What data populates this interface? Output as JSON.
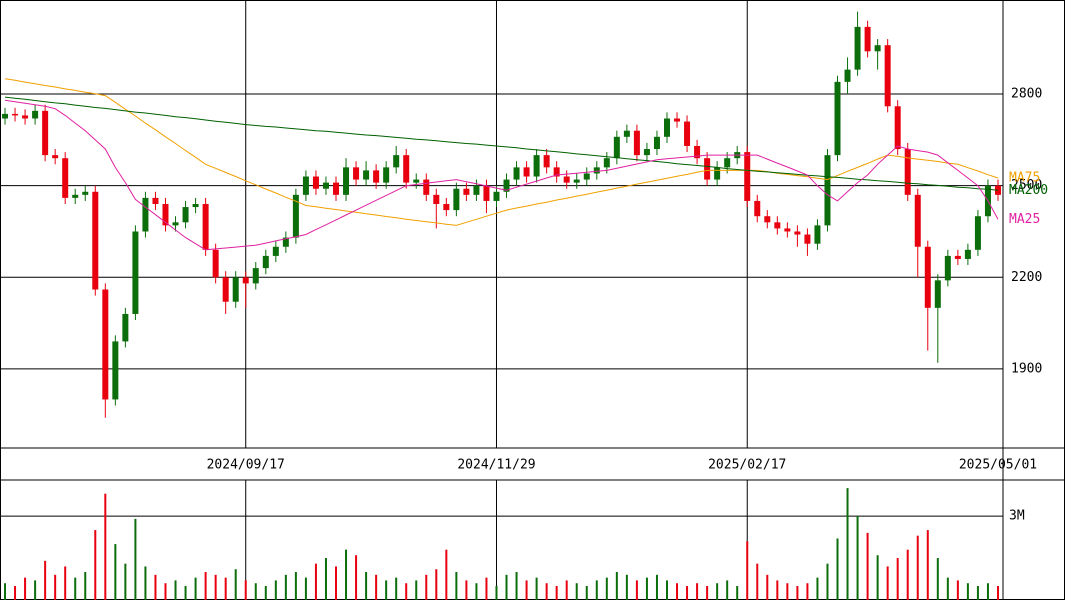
{
  "chart_data": [
    {
      "type": "candlestick",
      "categories": [
        null,
        null,
        null,
        null,
        null,
        null,
        null,
        null,
        null,
        null,
        null,
        null,
        null,
        null,
        null,
        null,
        null,
        null,
        null,
        null,
        null,
        null,
        null,
        null,
        "2024/09/17",
        null,
        null,
        null,
        null,
        null,
        null,
        null,
        null,
        null,
        null,
        null,
        null,
        null,
        null,
        null,
        null,
        null,
        null,
        null,
        null,
        null,
        null,
        null,
        null,
        "2024/11/29",
        null,
        null,
        null,
        null,
        null,
        null,
        null,
        null,
        null,
        null,
        null,
        null,
        null,
        null,
        null,
        null,
        null,
        null,
        null,
        null,
        null,
        null,
        null,
        null,
        "2025/02/17",
        null,
        null,
        null,
        null,
        null,
        null,
        null,
        null,
        null,
        null,
        null,
        null,
        null,
        null,
        null,
        null,
        null,
        null,
        null,
        null,
        null,
        null,
        null,
        null,
        "2025/05/01"
      ],
      "open": [
        2720,
        2735,
        2730,
        2720,
        2745,
        2600,
        2590,
        2460,
        2470,
        2480,
        2160,
        1800,
        1990,
        2080,
        2350,
        2460,
        2440,
        2370,
        2380,
        2430,
        2440,
        2290,
        2200,
        2120,
        2200,
        2180,
        2230,
        2270,
        2300,
        2330,
        2470,
        2530,
        2490,
        2510,
        2470,
        2560,
        2520,
        2550,
        2510,
        2560,
        2600,
        2510,
        2520,
        2470,
        2440,
        2420,
        2490,
        2470,
        2500,
        2450,
        2480,
        2520,
        2560,
        2530,
        2600,
        2560,
        2530,
        2510,
        2520,
        2540,
        2560,
        2590,
        2660,
        2680,
        2600,
        2620,
        2660,
        2720,
        2710,
        2630,
        2590,
        2520,
        2560,
        2590,
        2610,
        2450,
        2400,
        2380,
        2360,
        2350,
        2340,
        2310,
        2370,
        2600,
        2840,
        2880,
        3020,
        2940,
        2960,
        2760,
        2620,
        2470,
        2300,
        2100,
        2190,
        2270,
        2260,
        2290,
        2400,
        2500
      ],
      "high": [
        2755,
        2755,
        2750,
        2765,
        2765,
        2620,
        2610,
        2490,
        2500,
        2500,
        2180,
        2010,
        2100,
        2370,
        2480,
        2480,
        2460,
        2400,
        2450,
        2460,
        2460,
        2310,
        2220,
        2220,
        2220,
        2250,
        2290,
        2320,
        2350,
        2490,
        2550,
        2550,
        2530,
        2530,
        2590,
        2580,
        2580,
        2570,
        2580,
        2630,
        2620,
        2540,
        2540,
        2490,
        2460,
        2510,
        2510,
        2520,
        2520,
        2500,
        2540,
        2580,
        2580,
        2620,
        2620,
        2580,
        2550,
        2540,
        2560,
        2580,
        2610,
        2680,
        2700,
        2700,
        2640,
        2680,
        2740,
        2740,
        2730,
        2650,
        2610,
        2580,
        2610,
        2630,
        2630,
        2470,
        2420,
        2400,
        2380,
        2370,
        2360,
        2390,
        2620,
        2860,
        2920,
        3070,
        3040,
        2980,
        2980,
        2780,
        2640,
        2490,
        2320,
        2210,
        2290,
        2290,
        2310,
        2420,
        2520,
        2520
      ],
      "low": [
        2700,
        2710,
        2700,
        2700,
        2580,
        2570,
        2440,
        2440,
        2450,
        2140,
        1740,
        1780,
        1970,
        2060,
        2330,
        2420,
        2350,
        2350,
        2360,
        2410,
        2270,
        2180,
        2080,
        2100,
        2100,
        2160,
        2210,
        2250,
        2280,
        2310,
        2450,
        2470,
        2470,
        2450,
        2450,
        2500,
        2500,
        2490,
        2490,
        2540,
        2490,
        2490,
        2450,
        2360,
        2400,
        2400,
        2450,
        2450,
        2410,
        2430,
        2460,
        2500,
        2510,
        2510,
        2540,
        2510,
        2490,
        2490,
        2500,
        2520,
        2540,
        2570,
        2640,
        2580,
        2580,
        2600,
        2640,
        2690,
        2610,
        2570,
        2500,
        2500,
        2540,
        2570,
        2430,
        2380,
        2360,
        2340,
        2330,
        2300,
        2270,
        2290,
        2350,
        2580,
        2800,
        2860,
        2920,
        2880,
        2740,
        2600,
        2450,
        2200,
        1960,
        1920,
        2170,
        2240,
        2240,
        2270,
        2380,
        2450
      ],
      "close": [
        2735,
        2730,
        2720,
        2745,
        2600,
        2590,
        2460,
        2470,
        2480,
        2160,
        1800,
        1990,
        2080,
        2350,
        2460,
        2440,
        2370,
        2380,
        2430,
        2440,
        2290,
        2200,
        2120,
        2200,
        2180,
        2230,
        2270,
        2300,
        2330,
        2470,
        2530,
        2490,
        2510,
        2470,
        2560,
        2520,
        2550,
        2510,
        2560,
        2600,
        2510,
        2520,
        2470,
        2440,
        2420,
        2490,
        2470,
        2500,
        2450,
        2480,
        2520,
        2560,
        2530,
        2600,
        2560,
        2530,
        2510,
        2520,
        2540,
        2560,
        2590,
        2660,
        2680,
        2600,
        2620,
        2660,
        2720,
        2710,
        2630,
        2590,
        2520,
        2560,
        2590,
        2610,
        2450,
        2400,
        2380,
        2360,
        2350,
        2340,
        2310,
        2370,
        2600,
        2840,
        2880,
        3020,
        2940,
        2960,
        2760,
        2620,
        2470,
        2300,
        2100,
        2190,
        2270,
        2260,
        2290,
        2400,
        2500,
        2470
      ],
      "up_color": "#0b6e0b",
      "down_color": "#e8000f",
      "series": [
        {
          "name": "MA75",
          "color": "#f0a000",
          "values": [
            2850,
            2845,
            2839,
            2834,
            2828,
            2823,
            2817,
            2812,
            2806,
            2801,
            2795,
            2773,
            2750,
            2728,
            2705,
            2683,
            2660,
            2638,
            2615,
            2593,
            2570,
            2557,
            2543,
            2530,
            2516,
            2503,
            2489,
            2476,
            2462,
            2449,
            2435,
            2431,
            2426,
            2422,
            2417,
            2413,
            2408,
            2404,
            2399,
            2395,
            2390,
            2386,
            2382,
            2378,
            2374,
            2370,
            2380,
            2390,
            2400,
            2410,
            2420,
            2427,
            2433,
            2440,
            2446,
            2453,
            2459,
            2466,
            2472,
            2479,
            2485,
            2492,
            2498,
            2505,
            2511,
            2518,
            2524,
            2531,
            2537,
            2544,
            2550,
            2550,
            2550,
            2550,
            2550,
            2550,
            2546,
            2541,
            2537,
            2533,
            2529,
            2524,
            2520,
            2533,
            2547,
            2560,
            2573,
            2587,
            2600,
            2596,
            2591,
            2587,
            2583,
            2579,
            2574,
            2570,
            2559,
            2548,
            2536,
            2525
          ]
        },
        {
          "name": "MA200",
          "color": "#006000",
          "values": [
            2790,
            2786,
            2783,
            2779,
            2775,
            2771,
            2768,
            2764,
            2760,
            2756,
            2753,
            2749,
            2745,
            2741,
            2738,
            2734,
            2730,
            2726,
            2723,
            2719,
            2715,
            2711,
            2708,
            2704,
            2700,
            2697,
            2694,
            2692,
            2689,
            2686,
            2683,
            2680,
            2678,
            2675,
            2672,
            2669,
            2666,
            2664,
            2661,
            2658,
            2655,
            2652,
            2650,
            2647,
            2644,
            2641,
            2638,
            2636,
            2633,
            2630,
            2627,
            2624,
            2620,
            2617,
            2614,
            2611,
            2608,
            2604,
            2601,
            2598,
            2595,
            2592,
            2588,
            2585,
            2582,
            2579,
            2576,
            2572,
            2569,
            2566,
            2563,
            2560,
            2556,
            2553,
            2550,
            2547,
            2545,
            2542,
            2540,
            2537,
            2534,
            2532,
            2529,
            2527,
            2524,
            2521,
            2519,
            2516,
            2514,
            2511,
            2508,
            2506,
            2503,
            2501,
            2498,
            2495,
            2493,
            2490,
            2488,
            2485
          ]
        },
        {
          "name": "MA25",
          "color": "#e020a0",
          "values": [
            2780,
            2775,
            2770,
            2765,
            2760,
            2752,
            2730,
            2705,
            2680,
            2650,
            2620,
            2560,
            2510,
            2455,
            2430,
            2405,
            2380,
            2355,
            2330,
            2310,
            2290,
            2293,
            2296,
            2299,
            2302,
            2305,
            2312,
            2319,
            2326,
            2333,
            2340,
            2356,
            2372,
            2388,
            2404,
            2420,
            2436,
            2452,
            2468,
            2484,
            2500,
            2504,
            2508,
            2512,
            2516,
            2520,
            2513,
            2506,
            2499,
            2492,
            2485,
            2495,
            2505,
            2515,
            2525,
            2535,
            2538,
            2541,
            2544,
            2547,
            2550,
            2557,
            2564,
            2571,
            2578,
            2585,
            2588,
            2591,
            2594,
            2597,
            2600,
            2600,
            2600,
            2600,
            2600,
            2600,
            2587,
            2574,
            2561,
            2548,
            2535,
            2500,
            2470,
            2450,
            2480,
            2510,
            2535,
            2570,
            2600,
            2630,
            2620,
            2615,
            2610,
            2600,
            2575,
            2550,
            2525,
            2500,
            2450,
            2390
          ]
        }
      ],
      "ylim": [
        1641,
        3108
      ],
      "yticks": [
        1900,
        2200,
        2500,
        2800
      ],
      "grid": true
    },
    {
      "type": "bar",
      "values": [
        0.6,
        0.5,
        0.8,
        0.7,
        1.4,
        0.9,
        1.2,
        0.8,
        1.0,
        2.5,
        3.8,
        2.0,
        1.3,
        2.9,
        1.2,
        0.9,
        0.6,
        0.7,
        0.5,
        0.8,
        1.0,
        0.9,
        0.8,
        1.1,
        0.7,
        0.6,
        0.5,
        0.7,
        0.9,
        1.0,
        0.8,
        1.3,
        1.5,
        1.2,
        1.8,
        1.6,
        1.0,
        0.9,
        0.7,
        0.8,
        0.6,
        0.7,
        0.9,
        1.1,
        1.8,
        1.0,
        0.7,
        0.6,
        0.8,
        0.5,
        0.9,
        1.0,
        0.7,
        0.8,
        0.6,
        0.5,
        0.7,
        0.6,
        0.5,
        0.7,
        0.8,
        1.0,
        0.9,
        0.7,
        0.8,
        0.9,
        0.7,
        0.6,
        0.5,
        0.6,
        0.5,
        0.6,
        0.7,
        0.5,
        2.1,
        1.3,
        0.9,
        0.7,
        0.6,
        0.5,
        0.6,
        0.8,
        1.3,
        2.2,
        4.0,
        3.0,
        2.4,
        1.6,
        1.2,
        1.5,
        1.8,
        2.3,
        2.5,
        1.5,
        0.8,
        0.7,
        0.6,
        0.5,
        0.6,
        0.5
      ],
      "ylim": [
        0,
        4.29
      ],
      "yticks": [
        {
          "value": 3,
          "label": "3M"
        }
      ],
      "grid": true
    }
  ]
}
